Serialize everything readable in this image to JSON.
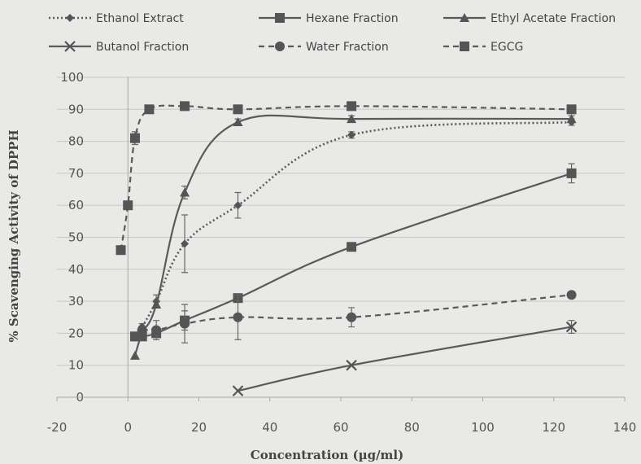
{
  "chart_data": {
    "type": "line",
    "xlabel": "Concentration (µg/ml)",
    "ylabel": "% Scavenging Activity of DPPH",
    "xlim": [
      -20,
      140
    ],
    "ylim": [
      0,
      100
    ],
    "xticks": [
      -20,
      0,
      20,
      40,
      60,
      80,
      100,
      120,
      140
    ],
    "yticks": [
      0,
      10,
      20,
      30,
      40,
      50,
      60,
      70,
      80,
      90,
      100
    ],
    "grid": "horizontal",
    "legend_position": "top",
    "series": [
      {
        "name": "Ethanol Extract",
        "marker": "diamond",
        "line": "dotted",
        "color": "#555555",
        "points": [
          [
            2,
            19
          ],
          [
            4,
            22
          ],
          [
            8,
            30
          ],
          [
            16,
            48
          ],
          [
            31,
            60
          ],
          [
            63,
            82
          ],
          [
            125,
            86
          ]
        ],
        "errors": [
          0,
          1,
          2,
          9,
          4,
          1,
          1
        ]
      },
      {
        "name": "Hexane Fraction",
        "marker": "square",
        "line": "solid",
        "color": "#555555",
        "points": [
          [
            2,
            19
          ],
          [
            4,
            19
          ],
          [
            8,
            20
          ],
          [
            16,
            24
          ],
          [
            31,
            31
          ],
          [
            63,
            47
          ],
          [
            125,
            70
          ]
        ],
        "errors": [
          0,
          1,
          1,
          3,
          1,
          1,
          3
        ]
      },
      {
        "name": "Ethyl Acetate Fraction",
        "marker": "triangle",
        "line": "solid",
        "color": "#555555",
        "points": [
          [
            2,
            13
          ],
          [
            4,
            20
          ],
          [
            8,
            29
          ],
          [
            16,
            64
          ],
          [
            31,
            86
          ],
          [
            63,
            87
          ],
          [
            125,
            87
          ]
        ],
        "errors": [
          0,
          1,
          1,
          2,
          1,
          1,
          1
        ]
      },
      {
        "name": "Butanol Fraction",
        "marker": "x",
        "line": "solid",
        "color": "#555555",
        "points": [
          [
            31,
            2
          ],
          [
            63,
            10
          ],
          [
            125,
            22
          ]
        ],
        "errors": [
          0,
          0,
          2
        ]
      },
      {
        "name": "Water Fraction",
        "marker": "circle",
        "line": "dashed",
        "color": "#555555",
        "points": [
          [
            2,
            19
          ],
          [
            4,
            21
          ],
          [
            8,
            21
          ],
          [
            16,
            23
          ],
          [
            31,
            25
          ],
          [
            63,
            25
          ],
          [
            125,
            32
          ]
        ],
        "errors": [
          1,
          1,
          3,
          6,
          7,
          3,
          1
        ]
      },
      {
        "name": "EGCG",
        "marker": "square",
        "line": "dashed",
        "color": "#555555",
        "points": [
          [
            -2,
            46
          ],
          [
            0,
            60
          ],
          [
            2,
            81
          ],
          [
            6,
            90
          ],
          [
            16,
            91
          ],
          [
            31,
            90
          ],
          [
            63,
            91
          ],
          [
            125,
            90
          ]
        ],
        "errors": [
          0,
          0,
          2,
          0,
          0,
          0,
          0,
          0
        ]
      }
    ]
  }
}
